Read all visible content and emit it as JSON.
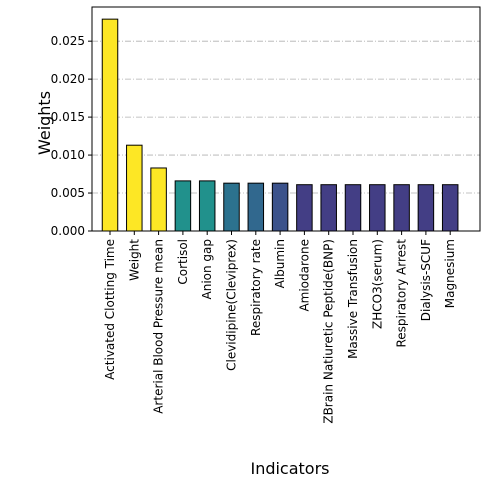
{
  "chart_data": {
    "type": "bar",
    "title": "",
    "xlabel": "Indicators",
    "ylabel": "Weights",
    "ylim": [
      0,
      0.0295
    ],
    "yticks": [
      0.0,
      0.005,
      0.01,
      0.015,
      0.02,
      0.025
    ],
    "ytick_labels": [
      "0.000",
      "0.005",
      "0.010",
      "0.015",
      "0.020",
      "0.025"
    ],
    "grid": "y-dashdot",
    "categories": [
      "Activated Clotting Time",
      "Weight",
      "Arterial Blood Pressure mean",
      "Cortisol",
      "Anion gap",
      "Clevidipine(Cleviprex)",
      "Respiratory rate",
      "Albumin",
      "Amiodarone",
      "ZBrain Natiuretic Peptide(BNP)",
      "Massive Transfusion",
      "ZHCO3(serum)",
      "Respiratory Arrest",
      "Dialysis-SCUF",
      "Magnesium"
    ],
    "values": [
      0.0279,
      0.0113,
      0.0083,
      0.0066,
      0.0066,
      0.0063,
      0.0063,
      0.0063,
      0.0061,
      0.0061,
      0.0061,
      0.0061,
      0.0061,
      0.0061,
      0.0061
    ],
    "colors": [
      "#fde725",
      "#fde725",
      "#fde725",
      "#21918c",
      "#21918c",
      "#2c728e",
      "#31688e",
      "#3b528b",
      "#433e85",
      "#433e85",
      "#433e85",
      "#433e85",
      "#433e85",
      "#433e85",
      "#433e85"
    ]
  }
}
